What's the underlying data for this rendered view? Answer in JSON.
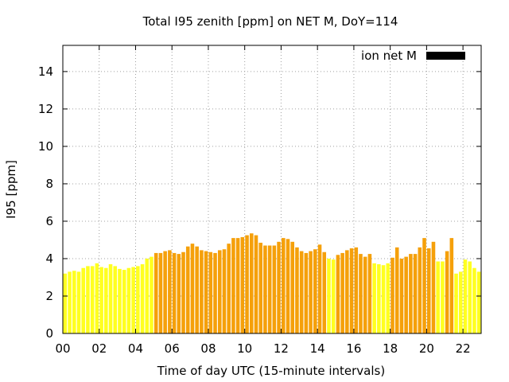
{
  "chart_data": {
    "type": "bar",
    "title": "Total I95 zenith [ppm] on NET M, DoY=114",
    "xlabel": "Time of day UTC (15-minute intervals)",
    "ylabel": "I95 [ppm]",
    "xlim": [
      0,
      23
    ],
    "ylim": [
      0,
      15.4
    ],
    "x_ticks": [
      0,
      2,
      4,
      6,
      8,
      10,
      12,
      14,
      16,
      18,
      20,
      22
    ],
    "x_tick_labels": [
      "00",
      "02",
      "04",
      "06",
      "08",
      "10",
      "12",
      "14",
      "16",
      "18",
      "20",
      "22"
    ],
    "y_ticks": [
      0,
      2,
      4,
      6,
      8,
      10,
      12,
      14
    ],
    "y_tick_labels": [
      "0",
      "2",
      "4",
      "6",
      "8",
      "10",
      "12",
      "14"
    ],
    "grid": true,
    "legend": {
      "label": "ion net M",
      "position": "top-right",
      "color": "#000000"
    },
    "colors": {
      "low": "#ffff20",
      "high": "#f5a00a"
    },
    "bar_width_hours": 0.2,
    "series": [
      {
        "x": [
          0.125,
          0.375,
          0.625,
          0.875,
          1.125,
          1.375,
          1.625,
          1.875,
          2.125,
          2.375,
          2.625,
          2.875,
          3.125,
          3.375,
          3.625,
          3.875,
          4.125,
          4.375,
          4.625,
          4.875,
          5.125,
          5.375,
          5.625,
          5.875,
          6.125,
          6.375,
          6.625,
          6.875,
          7.125,
          7.375,
          7.625,
          7.875,
          8.125,
          8.375,
          8.625,
          8.875,
          9.125,
          9.375,
          9.625,
          9.875,
          10.125,
          10.375,
          10.625,
          10.875,
          11.125,
          11.375,
          11.625,
          11.875,
          12.125,
          12.375,
          12.625,
          12.875,
          13.125,
          13.375,
          13.625,
          13.875,
          14.125,
          14.375,
          14.625,
          14.875,
          15.125,
          15.375,
          15.625,
          15.875,
          16.125,
          16.375,
          16.625,
          16.875,
          17.125,
          17.375,
          17.625,
          17.875,
          18.125,
          18.375,
          18.625,
          18.875,
          19.125,
          19.375,
          19.625,
          19.875,
          20.125,
          20.375,
          20.625,
          20.875,
          21.125,
          21.375,
          21.625,
          21.875,
          22.125,
          22.375,
          22.625,
          22.875
        ],
        "values": [
          3.2,
          3.3,
          3.35,
          3.3,
          3.5,
          3.6,
          3.6,
          3.75,
          3.55,
          3.5,
          3.7,
          3.6,
          3.45,
          3.4,
          3.5,
          3.55,
          3.6,
          3.7,
          4.0,
          4.1,
          4.3,
          4.3,
          4.4,
          4.45,
          4.3,
          4.25,
          4.35,
          4.65,
          4.8,
          4.65,
          4.45,
          4.4,
          4.35,
          4.3,
          4.45,
          4.5,
          4.8,
          5.1,
          5.1,
          5.15,
          5.25,
          5.35,
          5.25,
          4.85,
          4.7,
          4.7,
          4.7,
          4.9,
          5.1,
          5.05,
          4.9,
          4.6,
          4.4,
          4.3,
          4.4,
          4.5,
          4.75,
          4.35,
          4.0,
          3.95,
          4.2,
          4.3,
          4.45,
          4.55,
          4.6,
          4.25,
          4.1,
          4.25,
          3.75,
          3.7,
          3.65,
          3.75,
          4.05,
          4.6,
          4.0,
          4.1,
          4.25,
          4.25,
          4.6,
          5.1,
          4.55,
          4.9,
          3.85,
          3.85,
          4.4,
          5.1,
          3.2,
          3.3,
          3.95,
          3.85,
          3.5,
          3.3
        ],
        "colors": [
          "low",
          "low",
          "low",
          "low",
          "low",
          "low",
          "low",
          "low",
          "low",
          "low",
          "low",
          "low",
          "low",
          "low",
          "low",
          "low",
          "low",
          "low",
          "low",
          "low",
          "high",
          "high",
          "high",
          "high",
          "high",
          "high",
          "high",
          "high",
          "high",
          "high",
          "high",
          "high",
          "high",
          "high",
          "high",
          "high",
          "high",
          "high",
          "high",
          "high",
          "high",
          "high",
          "high",
          "high",
          "high",
          "high",
          "high",
          "high",
          "high",
          "high",
          "high",
          "high",
          "high",
          "high",
          "high",
          "high",
          "high",
          "high",
          "low",
          "low",
          "high",
          "high",
          "high",
          "high",
          "high",
          "high",
          "high",
          "high",
          "low",
          "low",
          "low",
          "low",
          "high",
          "high",
          "high",
          "high",
          "high",
          "high",
          "high",
          "high",
          "high",
          "high",
          "low",
          "low",
          "high",
          "high",
          "low",
          "low",
          "low",
          "low",
          "low",
          "low"
        ]
      }
    ]
  }
}
